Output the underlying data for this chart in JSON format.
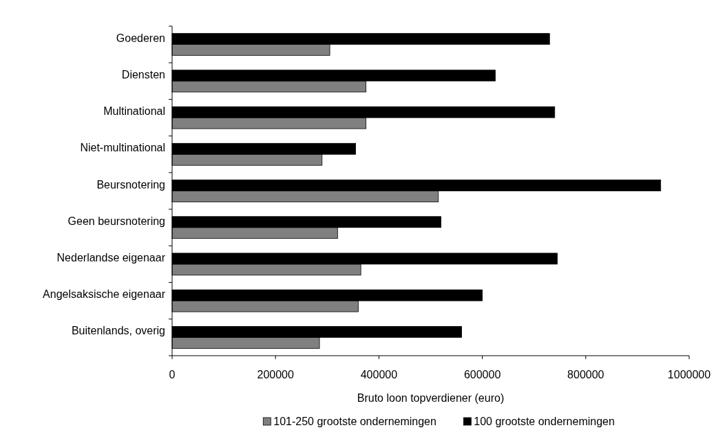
{
  "chart_data": {
    "type": "bar",
    "orientation": "horizontal",
    "xlabel": "Bruto loon topverdiener (euro)",
    "categories": [
      "Goederen",
      "Diensten",
      "Multinational",
      "Niet-multinational",
      "Beursnotering",
      "Geen beursnotering",
      "Nederlandse eigenaar",
      "Angelsaksische eigenaar",
      "Buitenlands, overig"
    ],
    "series": [
      {
        "name": "101-250 grootste ondernemingen",
        "color": "#808080",
        "values": [
          305000,
          375000,
          375000,
          290000,
          515000,
          320000,
          365000,
          360000,
          285000
        ]
      },
      {
        "name": "100 grootste ondernemingen",
        "color": "#000000",
        "values": [
          730000,
          625000,
          740000,
          355000,
          945000,
          520000,
          745000,
          600000,
          560000
        ]
      }
    ],
    "xlim": [
      0,
      1000000
    ],
    "xticks": [
      0,
      200000,
      400000,
      600000,
      800000,
      1000000
    ],
    "legend": "bottom"
  }
}
